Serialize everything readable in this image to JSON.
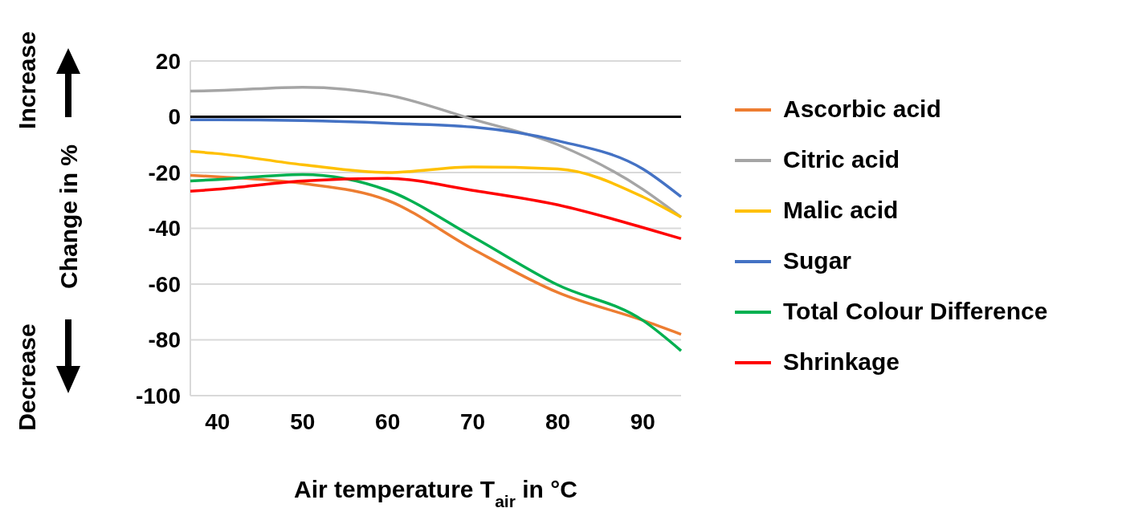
{
  "chart_data": {
    "type": "line",
    "xlabel": "Air temperature T$_{air}$ in °C",
    "ylabel": "Change in %",
    "annotations": [
      "Increase",
      "Decrease"
    ],
    "x": [
      36.8,
      40,
      50,
      60,
      70,
      80,
      90,
      94.5
    ],
    "xlim": [
      36.8,
      94.5
    ],
    "xticks": [
      40,
      50,
      60,
      70,
      80,
      90
    ],
    "ylim": [
      -100,
      20
    ],
    "yticks": [
      -100,
      -80,
      -60,
      -40,
      -20,
      0,
      20
    ],
    "grid": "y",
    "legend": "right",
    "ref_lines": [
      {
        "axis": "y",
        "value": 0,
        "color": "#000000"
      }
    ],
    "series": [
      {
        "name": "Ascorbic acid",
        "color": "#ed7d31",
        "values": [
          -21,
          -21.5,
          -23.9,
          -30,
          -47.4,
          -63,
          -73,
          -78
        ]
      },
      {
        "name": "Citric acid",
        "color": "#a5a5a5",
        "values": [
          9.2,
          9.4,
          10.6,
          7.8,
          -0.9,
          -10,
          -26,
          -36
        ]
      },
      {
        "name": "Malic acid",
        "color": "#ffc000",
        "values": [
          -12.4,
          -13.2,
          -17.2,
          -20,
          -18,
          -18.7,
          -28.7,
          -36
        ]
      },
      {
        "name": "Sugar",
        "color": "#4472c4",
        "values": [
          -1.1,
          -1.1,
          -1.4,
          -2.3,
          -3.7,
          -8.6,
          -18.7,
          -28.7
        ]
      },
      {
        "name": "Total Colour Difference",
        "color": "#00b050",
        "values": [
          -23,
          -22.5,
          -20.7,
          -26.4,
          -43,
          -60.3,
          -73,
          -83.9
        ]
      },
      {
        "name": "Shrinkage",
        "color": "#ff0000",
        "values": [
          -26.7,
          -26,
          -23,
          -22.1,
          -26.4,
          -31.6,
          -39.7,
          -43.7
        ]
      }
    ]
  }
}
